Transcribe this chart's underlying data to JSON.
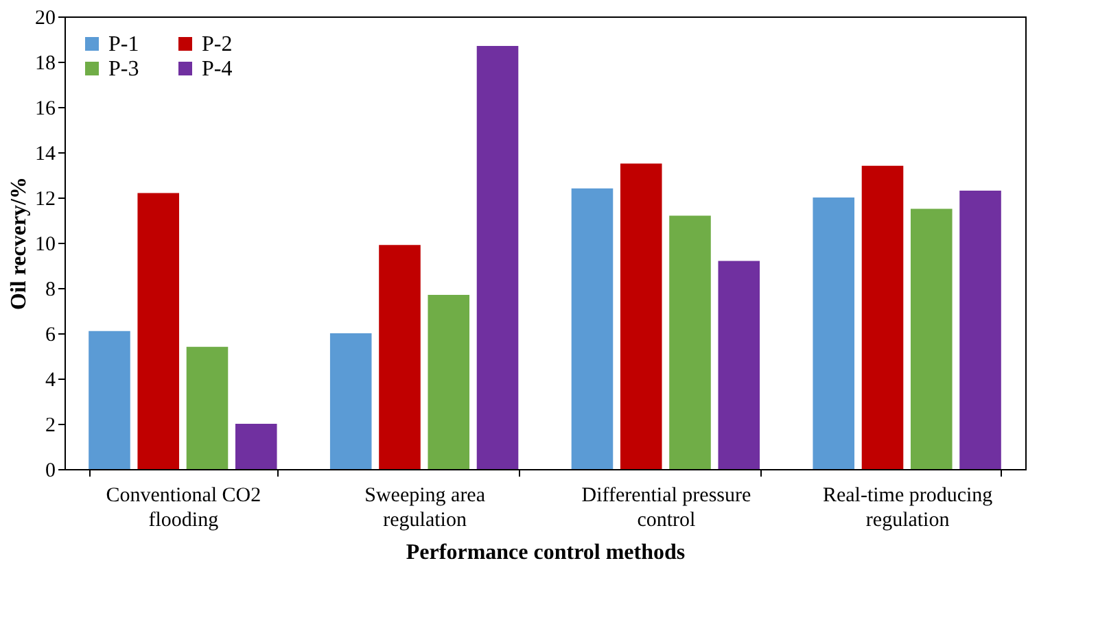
{
  "chart_data": {
    "type": "bar",
    "xlabel": "Performance control methods",
    "ylabel": "Oil recvery/%",
    "categories": [
      "Conventional CO2\nflooding",
      "Sweeping area\nregulation",
      "Differential pressure\ncontrol",
      "Real-time producing\nregulation"
    ],
    "series": [
      {
        "name": "P-1",
        "color": "#5b9bd5",
        "values": [
          6.1,
          6.0,
          12.4,
          12.0
        ]
      },
      {
        "name": "P-2",
        "color": "#c00000",
        "values": [
          12.2,
          9.9,
          13.5,
          13.4
        ]
      },
      {
        "name": "P-3",
        "color": "#70ad47",
        "values": [
          5.4,
          7.7,
          11.2,
          11.5
        ]
      },
      {
        "name": "P-4",
        "color": "#7030a0",
        "values": [
          2.0,
          18.7,
          9.2,
          12.3
        ]
      }
    ],
    "ylim": [
      0,
      20
    ],
    "yticks": [
      0,
      2,
      4,
      6,
      8,
      10,
      12,
      14,
      16,
      18,
      20
    ],
    "grid": false,
    "legend": "top left"
  }
}
